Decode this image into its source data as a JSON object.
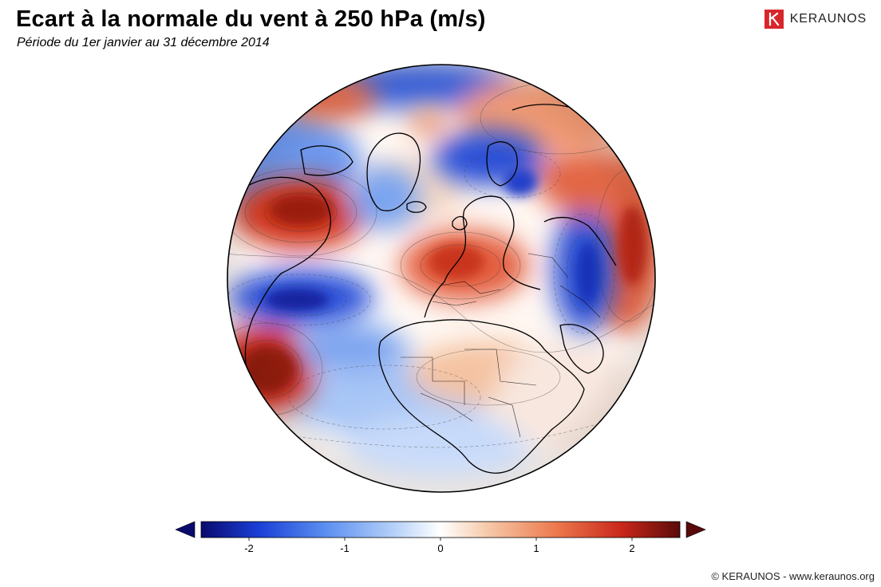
{
  "header": {
    "title": "Ecart à la normale du vent à 250 hPa (m/s)",
    "subtitle": "Période du 1er janvier au 31 décembre 2014"
  },
  "brand": {
    "name": "KERAUNOS",
    "logo_icon": "keraunos-k-logo-icon",
    "color": "#d7262b"
  },
  "colorbar": {
    "ticks": [
      {
        "value": -2,
        "label": "-2"
      },
      {
        "value": -1,
        "label": "-1"
      },
      {
        "value": 0,
        "label": "0"
      },
      {
        "value": 1,
        "label": "1"
      },
      {
        "value": 2,
        "label": "2"
      }
    ],
    "range": [
      -2.5,
      2.5
    ],
    "min_color": "#0a0a6e",
    "max_color": "#5a0a0a",
    "colors": [
      "#0a0a6e",
      "#1a3fd6",
      "#5b8ff0",
      "#b3cff8",
      "#ffffff",
      "#f6c8a8",
      "#ec7a4e",
      "#c8261a",
      "#5a0a0a"
    ]
  },
  "map": {
    "projection": "orthographic",
    "variable": "250 hPa wind anomaly",
    "anomaly_blobs": [
      {
        "label": "N Atlantic / E Canada",
        "sign": "positive",
        "strength": 2.2
      },
      {
        "label": "Subtropical Atlantic",
        "sign": "negative",
        "strength": -2.0
      },
      {
        "label": "W Atlantic / Gulf",
        "sign": "positive",
        "strength": 2.3
      },
      {
        "label": "Western Europe",
        "sign": "positive",
        "strength": 1.6
      },
      {
        "label": "Scandinavia / Arctic",
        "sign": "negative",
        "strength": -1.8
      },
      {
        "label": "Western Siberia",
        "sign": "positive",
        "strength": 1.8
      },
      {
        "label": "Central Asia",
        "sign": "negative",
        "strength": -1.7
      },
      {
        "label": "Greenland",
        "sign": "negative",
        "strength": -1.3
      },
      {
        "label": "Sahara",
        "sign": "negative",
        "strength": -0.8
      },
      {
        "label": "South Atlantic",
        "sign": "negative",
        "strength": -1.2
      }
    ]
  },
  "footer": {
    "text": "© KERAUNOS - www.keraunos.org"
  }
}
